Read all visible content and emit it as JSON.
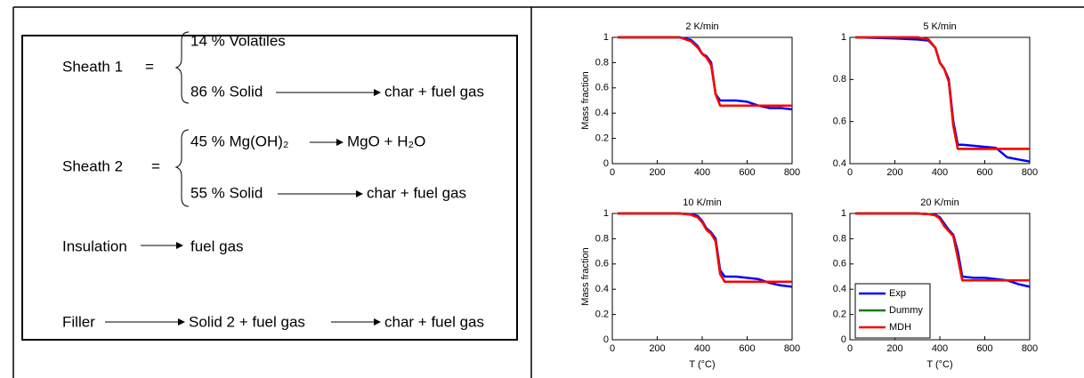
{
  "scheme": {
    "sheath1": {
      "label": "Sheath 1",
      "eq": "=",
      "volatiles": "14 % Volatiles",
      "solid": "86 % Solid",
      "product": "char + fuel gas"
    },
    "sheath2": {
      "label": "Sheath 2",
      "eq": "=",
      "mdh": "45 % Mg(OH)₂",
      "mdh_product": "MgO + H₂O",
      "solid": "55 % Solid",
      "product": "char + fuel gas"
    },
    "insulation": {
      "label": "Insulation",
      "product": "fuel gas"
    },
    "filler": {
      "label": "Filler",
      "intermediate": "Solid 2 + fuel gas",
      "product": "char + fuel gas"
    }
  },
  "chart_data": [
    {
      "type": "line",
      "title": "2 K/min",
      "ylabel": "Mass fraction",
      "xlim": [
        0,
        800
      ],
      "xticks": [
        0,
        200,
        400,
        600,
        800
      ],
      "ylim": [
        0,
        1
      ],
      "yticks": [
        0,
        0.2,
        0.4,
        0.6,
        0.8,
        1
      ],
      "x": [
        25,
        200,
        300,
        350,
        380,
        400,
        420,
        440,
        460,
        480,
        500,
        550,
        600,
        650,
        700,
        750,
        800
      ],
      "series": [
        {
          "name": "Exp",
          "color": "#0000ff",
          "values": [
            1,
            1,
            1,
            0.98,
            0.93,
            0.87,
            0.85,
            0.8,
            0.55,
            0.5,
            0.5,
            0.5,
            0.49,
            0.46,
            0.44,
            0.44,
            0.43
          ]
        },
        {
          "name": "Dummy",
          "color": "#008000",
          "values": [
            1,
            1,
            1,
            0.97,
            0.92,
            0.87,
            0.84,
            0.78,
            0.55,
            0.46,
            0.46,
            0.46,
            0.46,
            0.46,
            0.46,
            0.46,
            0.46
          ]
        },
        {
          "name": "MDH",
          "color": "#ff0000",
          "values": [
            1,
            1,
            1,
            0.97,
            0.92,
            0.87,
            0.84,
            0.78,
            0.55,
            0.46,
            0.46,
            0.46,
            0.46,
            0.46,
            0.46,
            0.46,
            0.46
          ]
        }
      ]
    },
    {
      "type": "line",
      "title": "5 K/min",
      "xlim": [
        0,
        800
      ],
      "xticks": [
        0,
        200,
        400,
        600,
        800
      ],
      "ylim": [
        0.4,
        1
      ],
      "yticks": [
        0.4,
        0.6,
        0.8,
        1
      ],
      "x": [
        25,
        200,
        300,
        350,
        380,
        400,
        420,
        440,
        460,
        480,
        500,
        550,
        600,
        650,
        700,
        750,
        800
      ],
      "series": [
        {
          "name": "Exp",
          "color": "#0000ff",
          "values": [
            1,
            0.995,
            0.99,
            0.985,
            0.95,
            0.88,
            0.85,
            0.8,
            0.6,
            0.49,
            0.49,
            0.485,
            0.48,
            0.475,
            0.43,
            0.42,
            0.41
          ]
        },
        {
          "name": "Dummy",
          "color": "#008000",
          "values": [
            1,
            1,
            1,
            0.99,
            0.95,
            0.88,
            0.85,
            0.79,
            0.58,
            0.47,
            0.47,
            0.47,
            0.47,
            0.47,
            0.47,
            0.47,
            0.47
          ]
        },
        {
          "name": "MDH",
          "color": "#ff0000",
          "values": [
            1,
            1,
            1,
            0.99,
            0.95,
            0.88,
            0.85,
            0.79,
            0.58,
            0.47,
            0.47,
            0.47,
            0.47,
            0.47,
            0.47,
            0.47,
            0.47
          ]
        }
      ]
    },
    {
      "type": "line",
      "title": "10 K/min",
      "ylabel": "Mass fraction",
      "xlabel": "T (°C)",
      "xlim": [
        0,
        800
      ],
      "xticks": [
        0,
        200,
        400,
        600,
        800
      ],
      "ylim": [
        0,
        1
      ],
      "yticks": [
        0,
        0.2,
        0.4,
        0.6,
        0.8,
        1
      ],
      "x": [
        25,
        200,
        300,
        350,
        380,
        400,
        420,
        440,
        460,
        480,
        500,
        550,
        600,
        650,
        700,
        750,
        800
      ],
      "series": [
        {
          "name": "Exp",
          "color": "#0000ff",
          "values": [
            1,
            1,
            1,
            0.995,
            0.98,
            0.94,
            0.88,
            0.85,
            0.8,
            0.55,
            0.5,
            0.5,
            0.49,
            0.48,
            0.45,
            0.43,
            0.42
          ]
        },
        {
          "name": "Dummy",
          "color": "#008000",
          "values": [
            1,
            1,
            1,
            0.99,
            0.97,
            0.93,
            0.87,
            0.84,
            0.78,
            0.52,
            0.46,
            0.46,
            0.46,
            0.46,
            0.46,
            0.46,
            0.46
          ]
        },
        {
          "name": "MDH",
          "color": "#ff0000",
          "values": [
            1,
            1,
            1,
            0.99,
            0.97,
            0.93,
            0.87,
            0.84,
            0.78,
            0.52,
            0.46,
            0.46,
            0.46,
            0.46,
            0.46,
            0.46,
            0.46
          ]
        }
      ]
    },
    {
      "type": "line",
      "title": "20 K/min",
      "xlabel": "T (°C)",
      "legend": "lower left",
      "xlim": [
        0,
        800
      ],
      "xticks": [
        0,
        200,
        400,
        600,
        800
      ],
      "ylim": [
        0,
        1
      ],
      "yticks": [
        0,
        0.2,
        0.4,
        0.6,
        0.8,
        1
      ],
      "x": [
        25,
        200,
        300,
        350,
        380,
        400,
        420,
        440,
        460,
        480,
        500,
        550,
        600,
        650,
        700,
        750,
        800
      ],
      "series": [
        {
          "name": "Exp",
          "color": "#0000ff",
          "values": [
            1,
            1,
            1,
            0.995,
            0.99,
            0.97,
            0.92,
            0.87,
            0.83,
            0.7,
            0.5,
            0.49,
            0.49,
            0.48,
            0.47,
            0.44,
            0.42
          ]
        },
        {
          "name": "Dummy",
          "color": "#008000",
          "values": [
            1,
            1,
            1,
            0.995,
            0.985,
            0.96,
            0.9,
            0.86,
            0.82,
            0.65,
            0.47,
            0.47,
            0.47,
            0.47,
            0.47,
            0.47,
            0.47
          ]
        },
        {
          "name": "MDH",
          "color": "#ff0000",
          "values": [
            1,
            1,
            1,
            0.995,
            0.985,
            0.96,
            0.9,
            0.86,
            0.82,
            0.65,
            0.47,
            0.47,
            0.47,
            0.47,
            0.47,
            0.47,
            0.47
          ]
        }
      ]
    }
  ]
}
